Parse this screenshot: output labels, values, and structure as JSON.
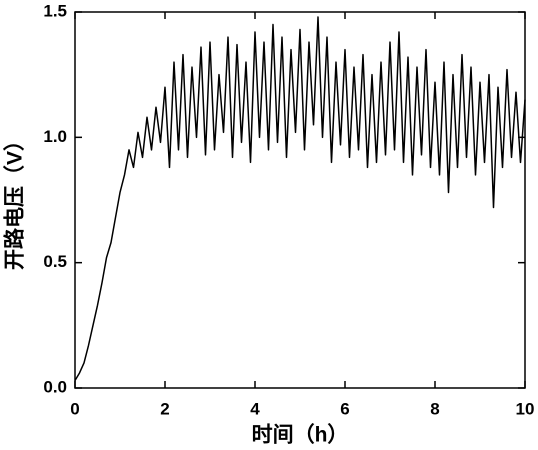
{
  "chart_data": {
    "type": "line",
    "x_label": "时间（h）",
    "y_label": "开路电压（V）",
    "color": "#000000",
    "x": [
      0,
      0.1,
      0.2,
      0.3,
      0.4,
      0.5,
      0.6,
      0.7,
      0.8,
      0.9,
      1.0,
      1.1,
      1.2,
      1.3,
      1.4,
      1.5,
      1.6,
      1.7,
      1.8,
      1.9,
      2.0,
      2.1,
      2.2,
      2.3,
      2.4,
      2.5,
      2.6,
      2.7,
      2.8,
      2.9,
      3.0,
      3.1,
      3.2,
      3.3,
      3.4,
      3.5,
      3.6,
      3.7,
      3.8,
      3.9,
      4.0,
      4.1,
      4.2,
      4.3,
      4.4,
      4.5,
      4.6,
      4.7,
      4.8,
      4.9,
      5.0,
      5.1,
      5.2,
      5.3,
      5.4,
      5.5,
      5.6,
      5.7,
      5.8,
      5.9,
      6.0,
      6.1,
      6.2,
      6.3,
      6.4,
      6.5,
      6.6,
      6.7,
      6.8,
      6.9,
      7.0,
      7.1,
      7.2,
      7.3,
      7.4,
      7.5,
      7.6,
      7.7,
      7.8,
      7.9,
      8.0,
      8.1,
      8.2,
      8.3,
      8.4,
      8.5,
      8.6,
      8.7,
      8.8,
      8.9,
      9.0,
      9.1,
      9.2,
      9.3,
      9.4,
      9.5,
      9.6,
      9.7,
      9.8,
      9.9,
      10.0
    ],
    "values": [
      0.03,
      0.06,
      0.1,
      0.17,
      0.25,
      0.33,
      0.42,
      0.52,
      0.58,
      0.68,
      0.78,
      0.85,
      0.95,
      0.88,
      1.02,
      0.92,
      1.08,
      0.95,
      1.12,
      0.98,
      1.2,
      0.88,
      1.3,
      0.95,
      1.33,
      0.92,
      1.28,
      1.0,
      1.36,
      0.93,
      1.38,
      0.95,
      1.25,
      1.02,
      1.4,
      0.92,
      1.37,
      0.98,
      1.3,
      0.9,
      1.42,
      1.0,
      1.38,
      0.95,
      1.45,
      0.98,
      1.4,
      0.92,
      1.35,
      1.02,
      1.43,
      0.95,
      1.38,
      1.05,
      1.48,
      1.0,
      1.4,
      0.9,
      1.3,
      0.97,
      1.35,
      0.92,
      1.28,
      0.95,
      1.33,
      0.88,
      1.25,
      0.9,
      1.3,
      0.93,
      1.38,
      0.95,
      1.42,
      0.9,
      1.32,
      0.85,
      1.28,
      0.93,
      1.35,
      0.88,
      1.22,
      0.85,
      1.3,
      0.78,
      1.25,
      0.88,
      1.33,
      0.92,
      1.28,
      0.85,
      1.22,
      0.9,
      1.25,
      0.72,
      1.2,
      0.88,
      1.27,
      0.92,
      1.18,
      0.9,
      1.15
    ],
    "xlim": [
      0,
      10
    ],
    "ylim": [
      0,
      1.5
    ],
    "xticks": [
      0,
      2,
      4,
      6,
      8,
      10
    ],
    "yticks": [
      {
        "value": 0,
        "label": "0.0"
      },
      0.5,
      {
        "value": 1,
        "label": "1.0"
      },
      1.5
    ]
  }
}
